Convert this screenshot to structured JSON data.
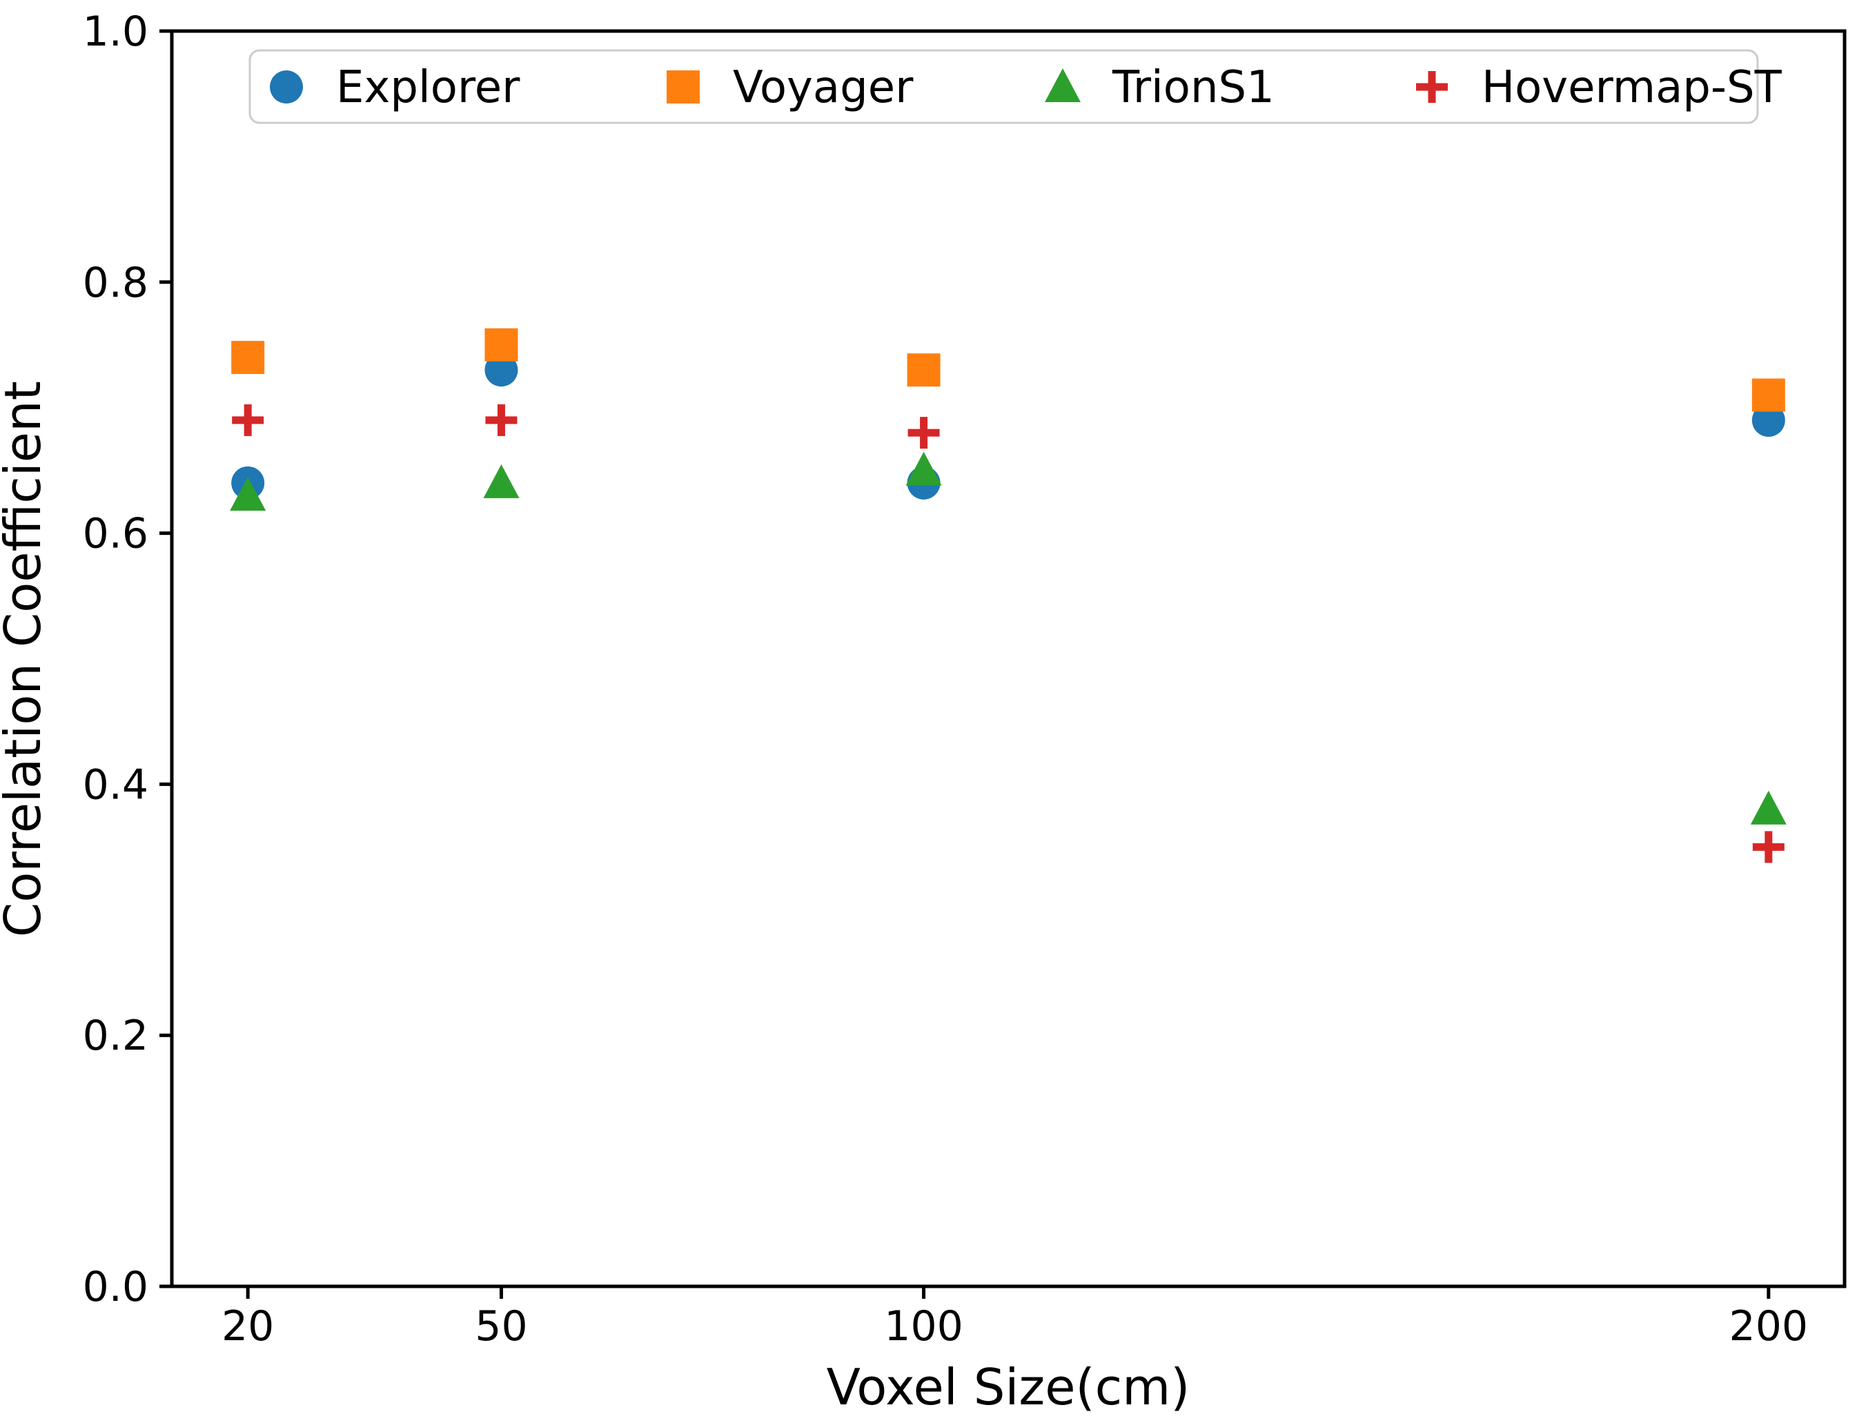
{
  "chart_data": {
    "type": "scatter",
    "title": "",
    "xlabel": "Voxel Size(cm)",
    "ylabel": "Correlation Coefficient",
    "x": [
      20,
      50,
      100,
      200
    ],
    "xtick_labels": [
      "20",
      "50",
      "100",
      "200"
    ],
    "yticks": [
      0.0,
      0.2,
      0.4,
      0.6,
      0.8,
      1.0
    ],
    "ytick_labels": [
      "0.0",
      "0.2",
      "0.4",
      "0.6",
      "0.8",
      "1.0"
    ],
    "xlim": [
      11,
      209
    ],
    "ylim": [
      0.0,
      1.0
    ],
    "grid": false,
    "legend_position": "top-inside-horizontal",
    "axis_color": "#000000",
    "legend_border_color": "#cccccc",
    "series": [
      {
        "name": "Explorer",
        "marker": "circle-icon",
        "color": "#1f77b4",
        "values": [
          0.64,
          0.73,
          0.64,
          0.69
        ]
      },
      {
        "name": "Voyager",
        "marker": "square-icon",
        "color": "#ff7f0e",
        "values": [
          0.74,
          0.75,
          0.73,
          0.71
        ]
      },
      {
        "name": "TrionS1",
        "marker": "triangle-icon",
        "color": "#2ca02c",
        "values": [
          0.63,
          0.64,
          0.65,
          0.38
        ]
      },
      {
        "name": "Hovermap-ST",
        "marker": "plus-icon",
        "color": "#d62728",
        "values": [
          0.69,
          0.69,
          0.68,
          0.35
        ]
      }
    ]
  }
}
